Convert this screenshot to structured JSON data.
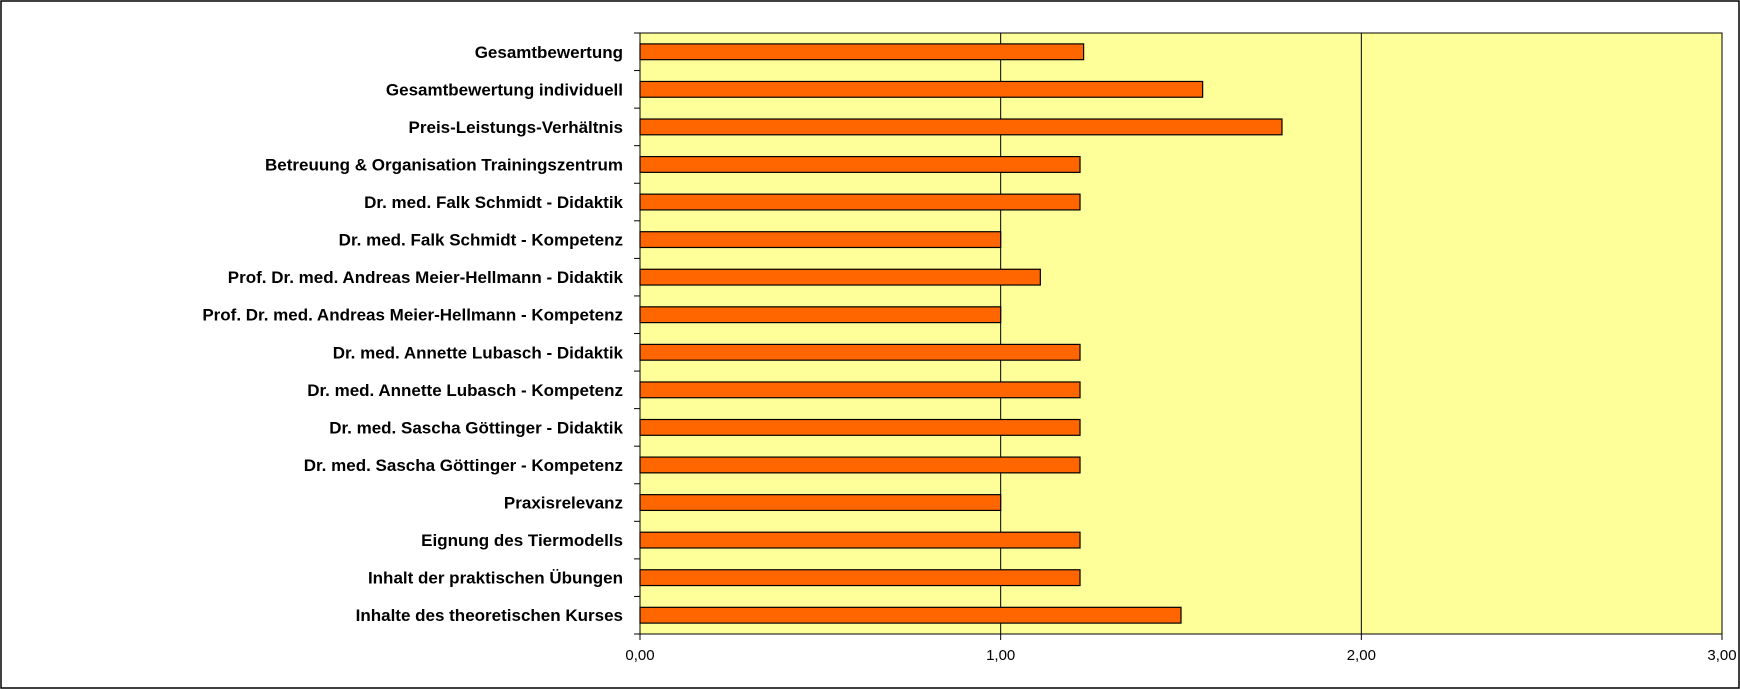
{
  "chart_data": {
    "type": "bar",
    "orientation": "horizontal",
    "categories": [
      "Gesamtbewertung",
      "Gesamtbewertung individuell",
      "Preis-Leistungs-Verhältnis",
      "Betreuung & Organisation Trainingszentrum",
      "Dr. med. Falk Schmidt - Didaktik",
      "Dr. med. Falk Schmidt - Kompetenz",
      "Prof. Dr. med. Andreas Meier-Hellmann - Didaktik",
      "Prof. Dr. med. Andreas Meier-Hellmann - Kompetenz",
      "Dr. med. Annette Lubasch - Didaktik",
      "Dr. med. Annette Lubasch - Kompetenz",
      "Dr. med. Sascha Göttinger - Didaktik",
      "Dr. med. Sascha Göttinger - Kompetenz",
      "Praxisrelevanz",
      "Eignung des Tiermodells",
      "Inhalt der praktischen Übungen",
      "Inhalte des theoretischen Kurses"
    ],
    "values": [
      1.23,
      1.56,
      1.78,
      1.22,
      1.22,
      1.0,
      1.11,
      1.0,
      1.22,
      1.22,
      1.22,
      1.22,
      1.0,
      1.22,
      1.22,
      1.5
    ],
    "xlim": [
      0,
      3
    ],
    "ticks": [
      "0,00",
      "1,00",
      "2,00",
      "3,00"
    ],
    "grid": "vertical",
    "legend": "none",
    "colors": {
      "bar_fill": "#FF6600",
      "bar_stroke": "#000000",
      "plot_background": "#FFFF99",
      "gridline": "#000000",
      "frame": "#000000"
    }
  }
}
